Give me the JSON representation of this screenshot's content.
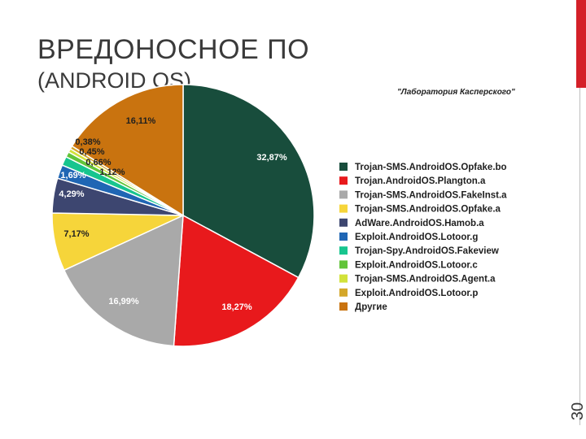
{
  "slide": {
    "title_line1": "ВРЕДОНОСНОЕ ПО",
    "title_line2": "(ANDROID OS)",
    "page_number": "30",
    "accent_color": "#d42028"
  },
  "chart_data": {
    "type": "pie",
    "source_note": "\"Лаборатория Касперского\"",
    "legend_position": "right",
    "slices": [
      {
        "name": "Trojan-SMS.AndroidOS.Opfake.bo",
        "value": 32.87,
        "label": "32,87%",
        "color": "#184d3c"
      },
      {
        "name": "Trojan.AndroidOS.Plangton.a",
        "value": 18.27,
        "label": "18,27%",
        "color": "#e8191c"
      },
      {
        "name": "Trojan-SMS.AndroidOS.FakeInst.a",
        "value": 16.99,
        "label": "16,99%",
        "color": "#a9a9a9"
      },
      {
        "name": "Trojan-SMS.AndroidOS.Opfake.a",
        "value": 7.17,
        "label": "7,17%",
        "color": "#f6d53a"
      },
      {
        "name": "AdWare.AndroidOS.Hamob.a",
        "value": 4.29,
        "label": "4,29%",
        "color": "#3d4670"
      },
      {
        "name": "Exploit.AndroidOS.Lotoor.g",
        "value": 1.69,
        "label": "1,69%",
        "color": "#1f66b4"
      },
      {
        "name": "Trojan-Spy.AndroidOS.Fakeview",
        "value": 1.12,
        "label": "1,12%",
        "color": "#17c58e"
      },
      {
        "name": "Exploit.AndroidOS.Lotoor.c",
        "value": 0.66,
        "label": "0,66%",
        "color": "#62c43a"
      },
      {
        "name": "Trojan-SMS.AndroidOS.Agent.a",
        "value": 0.45,
        "label": "0,45%",
        "color": "#d2e23a"
      },
      {
        "name": "Exploit.AndroidOS.Lotoor.p",
        "value": 0.38,
        "label": "0,38%",
        "color": "#d4a72a"
      },
      {
        "name": "Другие",
        "value": 16.11,
        "label": "16,11%",
        "color": "#c9730f"
      }
    ]
  }
}
